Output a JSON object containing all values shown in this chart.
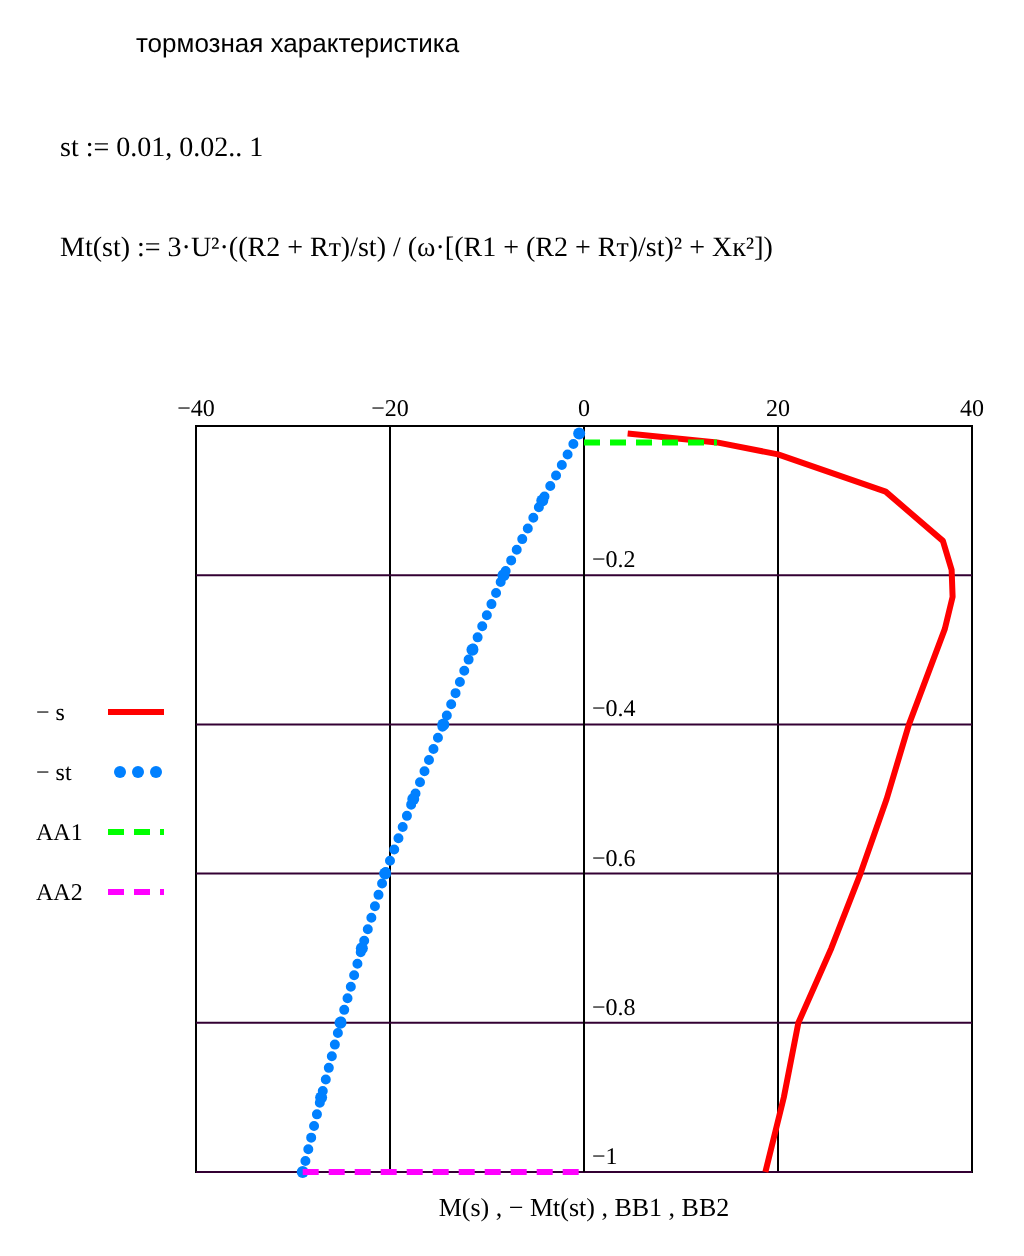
{
  "chart_data": {
    "type": "line",
    "title": "тормозная характеристика",
    "annotations": [
      "st := 0.01, 0.02.. 1",
      "Mt(st) := 3·U²·((R2 + Rт)/st) / (ω·[(R1 + (R2 + Rт)/st)² + Xк²])"
    ],
    "xlabel": "M(s) , − Mt(st) , BB1 , BB2",
    "xlim": [
      -40,
      40
    ],
    "xticks": [
      {
        "value": -40,
        "label": "−40"
      },
      {
        "value": -20,
        "label": "−20"
      },
      0,
      20,
      40
    ],
    "ylim": [
      -1,
      0
    ],
    "yticks": [
      {
        "value": -1,
        "label": "−1"
      },
      {
        "value": -0.8,
        "label": "−0.8"
      },
      {
        "value": -0.6,
        "label": "−0.6"
      },
      {
        "value": -0.4,
        "label": "−0.4"
      },
      {
        "value": -0.2,
        "label": "−0.2"
      }
    ],
    "grid": true,
    "legend": "left",
    "series": [
      {
        "name": "− s",
        "color": "#ff0000",
        "line_style": "solid",
        "marker": "none",
        "x": [
          4.5,
          13.7,
          20,
          31.1,
          37,
          37.9,
          38,
          37.2,
          33.5,
          31.2,
          28.5,
          25.5,
          22.1,
          20.6,
          18.7
        ],
        "values": [
          -0.01,
          -0.022,
          -0.038,
          -0.088,
          -0.154,
          -0.193,
          -0.229,
          -0.272,
          -0.4,
          -0.5,
          -0.6,
          -0.7,
          -0.8,
          -0.9,
          -1
        ]
      },
      {
        "name": "− st",
        "color": "#0080ff",
        "line_style": "dotted",
        "marker": "circle",
        "x": [
          -0.5,
          -4.3,
          -8.3,
          -11.5,
          -14.5,
          -17.6,
          -20.5,
          -22.9,
          -25.1,
          -27.1,
          -29
        ],
        "values": [
          -0.01,
          -0.1,
          -0.2,
          -0.3,
          -0.4,
          -0.5,
          -0.6,
          -0.7,
          -0.8,
          -0.9,
          -1
        ]
      },
      {
        "name": "AA1",
        "color": "#00ff00",
        "line_style": "dashed",
        "marker": "none",
        "x": [
          0,
          13.7
        ],
        "values": [
          -0.022,
          -0.022
        ]
      },
      {
        "name": "AA2",
        "color": "#ff00ff",
        "line_style": "dashed",
        "marker": "none",
        "x": [
          -29,
          0
        ],
        "values": [
          -1,
          -1
        ]
      }
    ]
  }
}
